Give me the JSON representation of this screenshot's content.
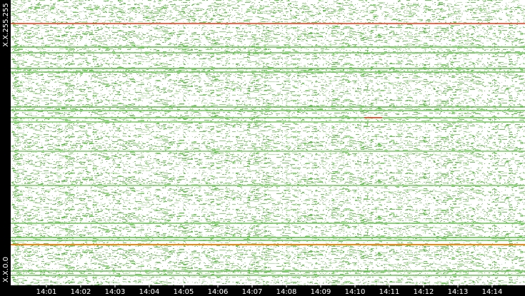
{
  "chart_data": {
    "type": "heatmap",
    "x": [
      "14:01",
      "14:02",
      "14:03",
      "14:04",
      "14:05",
      "14:06",
      "14:07",
      "14:08",
      "14:09",
      "14:10",
      "14:11",
      "14:12",
      "14:13",
      "14:14"
    ],
    "y_labels": [
      "X.X.255.255",
      "X.X.0.0"
    ]
  }
}
